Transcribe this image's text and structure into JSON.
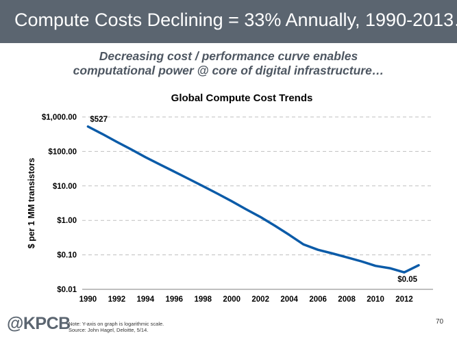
{
  "slide": {
    "title": "Compute Costs Declining = 33% Annually, 1990-2013…",
    "subtitle_line1": "Decreasing cost / performance curve enables",
    "subtitle_line2": "computational power @ core of digital infrastructure…",
    "logo_text": "@KPCB",
    "note": "Note: Y-axis on graph is logarithmic scale.",
    "source": "Source: John Hagel, Deloitte, 5/14.",
    "page_number": "70",
    "colors": {
      "header_bg": "#5b6570",
      "line": "#0b5ba8",
      "grid": "#bfbfbf"
    }
  },
  "chart_data": {
    "type": "line",
    "title": "Global Compute Cost Trends",
    "ylabel": "$ per 1 MM transistors",
    "xlabel": "",
    "y_scale": "log",
    "ylim": [
      0.01,
      1000
    ],
    "xlim": [
      1990,
      2013
    ],
    "grid": true,
    "x_ticks": [
      1990,
      1992,
      1994,
      1996,
      1998,
      2000,
      2002,
      2004,
      2006,
      2008,
      2010,
      2012
    ],
    "x_tick_labels": [
      "1990",
      "1992",
      "1994",
      "1996",
      "1998",
      "2000",
      "2002",
      "2004",
      "2006",
      "2008",
      "2010",
      "2012"
    ],
    "y_ticks": [
      0.01,
      0.1,
      1,
      10,
      100,
      1000
    ],
    "y_tick_labels": [
      "$0.01",
      "$0.10",
      "$1.00",
      "$10.00",
      "$100.00",
      "$1,000.00"
    ],
    "series": [
      {
        "x": [
          1990,
          1991,
          1992,
          1993,
          1994,
          1995,
          1996,
          1997,
          1998,
          1999,
          2000,
          2001,
          2002,
          2003,
          2004,
          2005,
          2006,
          2007,
          2008,
          2009,
          2010,
          2011,
          2012,
          2013
        ],
        "y": [
          527,
          320,
          190,
          115,
          68,
          42,
          26,
          16,
          9.8,
          6.0,
          3.6,
          2.1,
          1.25,
          0.7,
          0.38,
          0.2,
          0.14,
          0.11,
          0.085,
          0.065,
          0.048,
          0.041,
          0.031,
          0.05
        ]
      }
    ],
    "annotations": [
      {
        "text": "$527",
        "x": 1990,
        "y": 527
      },
      {
        "text": "$0.05",
        "x": 2013,
        "y": 0.05
      }
    ]
  }
}
